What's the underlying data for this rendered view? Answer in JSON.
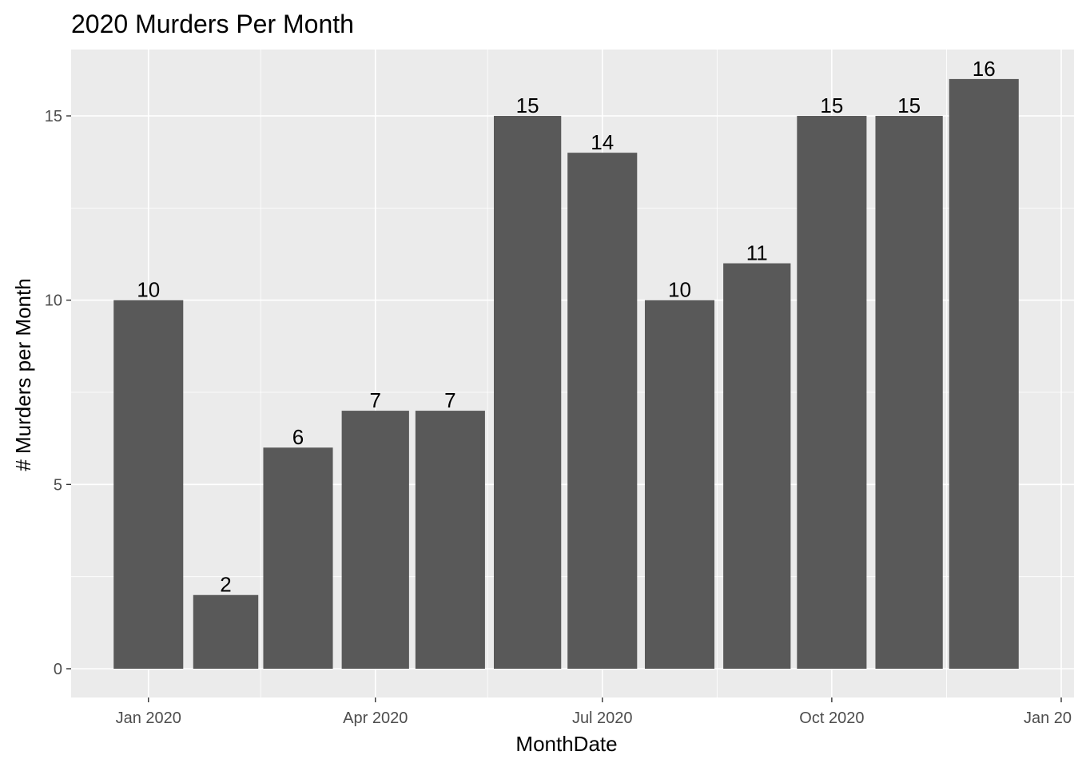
{
  "chart_data": {
    "type": "bar",
    "title": "2020 Murders Per Month",
    "xlabel": "MonthDate",
    "ylabel": "# Murders per Month",
    "x_axis_type": "date",
    "xlim": [
      "2019-12-01",
      "2021-01-01"
    ],
    "ylim": [
      0,
      16.8
    ],
    "x_ticks": [
      {
        "date": "2020-01-01",
        "label": "Jan 2020"
      },
      {
        "date": "2020-04-01",
        "label": "Apr 2020"
      },
      {
        "date": "2020-07-01",
        "label": "Jul 2020"
      },
      {
        "date": "2020-10-01",
        "label": "Oct 2020"
      },
      {
        "date": "2021-01-01",
        "label": "Jan 20"
      }
    ],
    "x_minor_gridlines": [
      "2020-02-15",
      "2020-05-16",
      "2020-08-16",
      "2020-11-16"
    ],
    "y_ticks": [
      0,
      5,
      10,
      15
    ],
    "y_minor_gridlines": [
      2.5,
      7.5,
      12.5
    ],
    "grid": true,
    "legend": "none",
    "colors": {
      "panel_background": "#EBEBEB",
      "gridline": "#FFFFFF",
      "bar_fill": "#595959",
      "tick_label": "#4D4D4D",
      "tick_mark": "#333333",
      "text": "#000000"
    },
    "categories": [
      "2020-01-01",
      "2020-02-01",
      "2020-03-01",
      "2020-04-01",
      "2020-05-01",
      "2020-06-01",
      "2020-07-01",
      "2020-08-01",
      "2020-09-01",
      "2020-10-01",
      "2020-11-01",
      "2020-12-01"
    ],
    "values": [
      10,
      2,
      6,
      7,
      7,
      15,
      14,
      10,
      11,
      15,
      15,
      16
    ],
    "data_labels": [
      "10",
      "2",
      "6",
      "7",
      "7",
      "15",
      "14",
      "10",
      "11",
      "15",
      "15",
      "16"
    ]
  }
}
